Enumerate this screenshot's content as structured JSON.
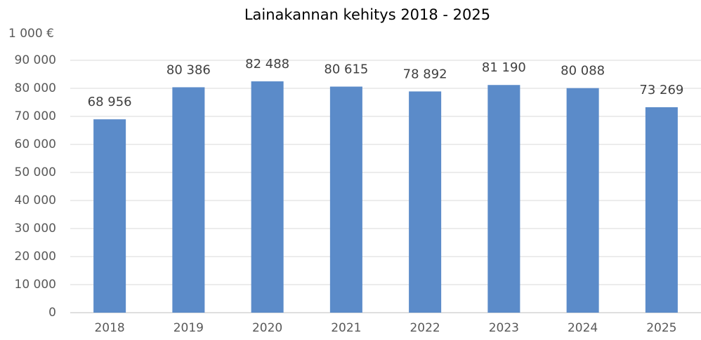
{
  "chart_data": {
    "type": "bar",
    "title": "Lainakannan kehitys 2018 - 2025",
    "y_label": "1 000 €",
    "categories": [
      "2018",
      "2019",
      "2020",
      "2021",
      "2022",
      "2023",
      "2024",
      "2025"
    ],
    "values": [
      68956,
      80386,
      82488,
      80615,
      78892,
      81190,
      80088,
      73269
    ],
    "value_labels": [
      "68 956",
      "80 386",
      "82 488",
      "80 615",
      "78 892",
      "81 190",
      "80 088",
      "73 269"
    ],
    "color": "#5b8bc9",
    "ylim": [
      0,
      90000
    ],
    "yticks": [
      0,
      {
        "value": 10000,
        "label": "10 000"
      },
      {
        "value": 20000,
        "label": "20 000"
      },
      {
        "value": 30000,
        "label": "30 000"
      },
      {
        "value": 40000,
        "label": "40 000"
      },
      {
        "value": 50000,
        "label": "50 000"
      },
      {
        "value": 60000,
        "label": "60 000"
      },
      {
        "value": 70000,
        "label": "70 000"
      },
      {
        "value": 80000,
        "label": "80 000"
      },
      {
        "value": 90000,
        "label": "90 000"
      }
    ],
    "grid": true
  }
}
